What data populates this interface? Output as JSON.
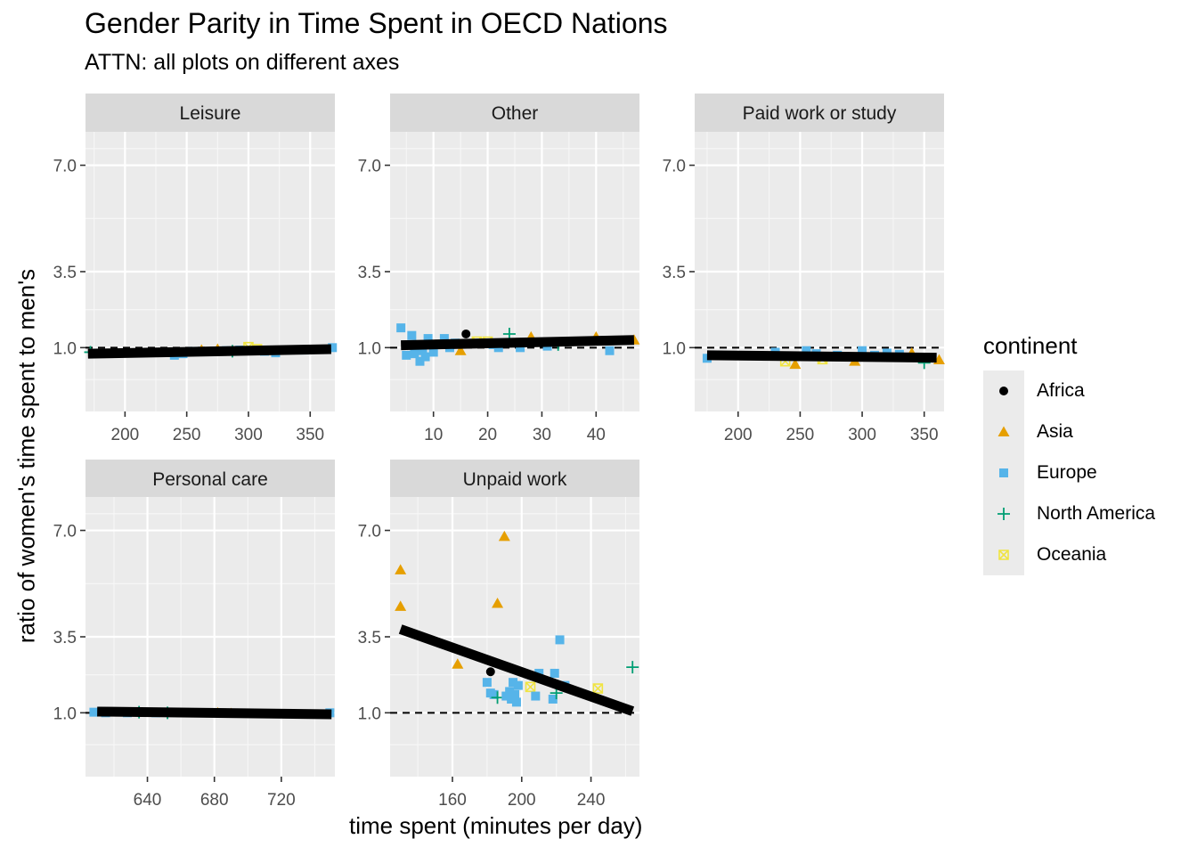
{
  "title": "Gender Parity in Time Spent in OECD Nations",
  "subtitle": "ATTN: all plots on different axes",
  "xlabel": "time spent (minutes per day)",
  "ylabel": "ratio of women's time spent to men's",
  "legend": {
    "title": "continent",
    "entries": [
      {
        "label": "Africa",
        "color": "#000000",
        "shape": "circle"
      },
      {
        "label": "Asia",
        "color": "#E69F00",
        "shape": "triangle"
      },
      {
        "label": "Europe",
        "color": "#56B4E9",
        "shape": "square"
      },
      {
        "label": "North America",
        "color": "#009E73",
        "shape": "plus"
      },
      {
        "label": "Oceania",
        "color": "#F0E442",
        "shape": "squarecross"
      }
    ]
  },
  "chart_data": {
    "type": "scatter",
    "reference_line_y": 1.0,
    "ylim": [
      -1.1,
      8.1
    ],
    "y_ticks": [
      1.0,
      3.5,
      7.0
    ],
    "y_tick_labels": [
      "1.0",
      "3.5",
      "7.0"
    ],
    "panels": [
      {
        "name": "Leisure",
        "xlim": [
          168,
          370
        ],
        "x_ticks": [
          200,
          250,
          300,
          350
        ],
        "fit": [
          [
            170,
            0.8
          ],
          [
            367,
            0.95
          ]
        ],
        "points": [
          {
            "x": 172,
            "y": 0.85,
            "c": "North America"
          },
          {
            "x": 240,
            "y": 0.75,
            "c": "Europe"
          },
          {
            "x": 247,
            "y": 0.8,
            "c": "Europe"
          },
          {
            "x": 255,
            "y": 0.88,
            "c": "Europe"
          },
          {
            "x": 262,
            "y": 0.92,
            "c": "Asia"
          },
          {
            "x": 275,
            "y": 0.95,
            "c": "Asia"
          },
          {
            "x": 282,
            "y": 0.9,
            "c": "Europe"
          },
          {
            "x": 287,
            "y": 0.88,
            "c": "North America"
          },
          {
            "x": 293,
            "y": 0.92,
            "c": "Europe"
          },
          {
            "x": 300,
            "y": 1.02,
            "c": "Oceania"
          },
          {
            "x": 307,
            "y": 0.95,
            "c": "Oceania"
          },
          {
            "x": 313,
            "y": 0.88,
            "c": "Europe"
          },
          {
            "x": 322,
            "y": 0.83,
            "c": "Europe"
          },
          {
            "x": 330,
            "y": 0.92,
            "c": "Europe"
          },
          {
            "x": 345,
            "y": 0.92,
            "c": "Europe"
          },
          {
            "x": 368,
            "y": 1.0,
            "c": "Europe"
          }
        ]
      },
      {
        "name": "Other",
        "xlim": [
          2,
          48
        ],
        "x_ticks": [
          10,
          20,
          30,
          40
        ],
        "fit": [
          [
            4,
            1.08
          ],
          [
            47,
            1.25
          ]
        ],
        "points": [
          {
            "x": 4,
            "y": 1.65,
            "c": "Europe"
          },
          {
            "x": 5,
            "y": 0.75,
            "c": "Europe"
          },
          {
            "x": 6,
            "y": 1.4,
            "c": "Europe"
          },
          {
            "x": 6.5,
            "y": 0.8,
            "c": "Europe"
          },
          {
            "x": 7,
            "y": 1.1,
            "c": "Europe"
          },
          {
            "x": 7.5,
            "y": 0.55,
            "c": "Europe"
          },
          {
            "x": 8,
            "y": 0.9,
            "c": "Europe"
          },
          {
            "x": 8.5,
            "y": 0.7,
            "c": "Europe"
          },
          {
            "x": 9,
            "y": 1.3,
            "c": "Europe"
          },
          {
            "x": 10,
            "y": 0.85,
            "c": "Europe"
          },
          {
            "x": 11,
            "y": 1.1,
            "c": "Europe"
          },
          {
            "x": 12,
            "y": 1.3,
            "c": "Europe"
          },
          {
            "x": 13,
            "y": 1.0,
            "c": "Europe"
          },
          {
            "x": 14,
            "y": 1.15,
            "c": "Europe"
          },
          {
            "x": 15,
            "y": 0.9,
            "c": "Asia"
          },
          {
            "x": 16,
            "y": 1.45,
            "c": "Africa"
          },
          {
            "x": 18,
            "y": 1.2,
            "c": "Oceania"
          },
          {
            "x": 20,
            "y": 1.2,
            "c": "Oceania"
          },
          {
            "x": 21,
            "y": 1.1,
            "c": "Europe"
          },
          {
            "x": 22,
            "y": 1.0,
            "c": "Europe"
          },
          {
            "x": 24,
            "y": 1.45,
            "c": "North America"
          },
          {
            "x": 26,
            "y": 1.0,
            "c": "Europe"
          },
          {
            "x": 28,
            "y": 1.35,
            "c": "Asia"
          },
          {
            "x": 31,
            "y": 1.05,
            "c": "Europe"
          },
          {
            "x": 33,
            "y": 1.1,
            "c": "North America"
          },
          {
            "x": 40,
            "y": 1.35,
            "c": "Asia"
          },
          {
            "x": 42.5,
            "y": 0.9,
            "c": "Europe"
          },
          {
            "x": 47,
            "y": 1.25,
            "c": "Asia"
          }
        ]
      },
      {
        "name": "Paid work or study",
        "xlim": [
          165,
          366
        ],
        "x_ticks": [
          200,
          250,
          300,
          350
        ],
        "fit": [
          [
            175,
            0.75
          ],
          [
            360,
            0.67
          ]
        ],
        "points": [
          {
            "x": 175,
            "y": 0.65,
            "c": "Europe"
          },
          {
            "x": 230,
            "y": 0.85,
            "c": "Europe"
          },
          {
            "x": 238,
            "y": 0.55,
            "c": "Oceania"
          },
          {
            "x": 246,
            "y": 0.45,
            "c": "Asia"
          },
          {
            "x": 255,
            "y": 0.9,
            "c": "Europe"
          },
          {
            "x": 258,
            "y": 0.72,
            "c": "Europe"
          },
          {
            "x": 263,
            "y": 0.8,
            "c": "Europe"
          },
          {
            "x": 268,
            "y": 0.62,
            "c": "Oceania"
          },
          {
            "x": 280,
            "y": 0.75,
            "c": "Europe"
          },
          {
            "x": 294,
            "y": 0.55,
            "c": "Asia"
          },
          {
            "x": 300,
            "y": 0.9,
            "c": "Europe"
          },
          {
            "x": 310,
            "y": 0.75,
            "c": "Europe"
          },
          {
            "x": 320,
            "y": 0.82,
            "c": "Europe"
          },
          {
            "x": 330,
            "y": 0.78,
            "c": "Europe"
          },
          {
            "x": 340,
            "y": 0.82,
            "c": "Asia"
          },
          {
            "x": 350,
            "y": 0.5,
            "c": "North America"
          },
          {
            "x": 362,
            "y": 0.6,
            "c": "Asia"
          }
        ]
      },
      {
        "name": "Personal care",
        "xlim": [
          603,
          752
        ],
        "x_ticks": [
          640,
          680,
          720
        ],
        "fit": [
          [
            610,
            1.04
          ],
          [
            750,
            0.95
          ]
        ],
        "points": [
          {
            "x": 608,
            "y": 1.02,
            "c": "Europe"
          },
          {
            "x": 615,
            "y": 1.0,
            "c": "Europe"
          },
          {
            "x": 628,
            "y": 1.0,
            "c": "Europe"
          },
          {
            "x": 635,
            "y": 1.02,
            "c": "North America"
          },
          {
            "x": 645,
            "y": 1.0,
            "c": "Europe"
          },
          {
            "x": 652,
            "y": 1.0,
            "c": "North America"
          },
          {
            "x": 660,
            "y": 1.0,
            "c": "Europe"
          },
          {
            "x": 668,
            "y": 1.0,
            "c": "Europe"
          },
          {
            "x": 682,
            "y": 1.0,
            "c": "Asia"
          },
          {
            "x": 690,
            "y": 0.98,
            "c": "Asia"
          },
          {
            "x": 700,
            "y": 0.98,
            "c": "Europe"
          },
          {
            "x": 720,
            "y": 0.97,
            "c": "Europe"
          },
          {
            "x": 749,
            "y": 1.0,
            "c": "Europe"
          }
        ]
      },
      {
        "name": "Unpaid work",
        "xlim": [
          124,
          268
        ],
        "x_ticks": [
          160,
          200,
          240
        ],
        "fit": [
          [
            130,
            3.75
          ],
          [
            264,
            1.05
          ]
        ],
        "points": [
          {
            "x": 130,
            "y": 5.7,
            "c": "Asia"
          },
          {
            "x": 130,
            "y": 4.5,
            "c": "Asia"
          },
          {
            "x": 163,
            "y": 2.6,
            "c": "Asia"
          },
          {
            "x": 180,
            "y": 2.0,
            "c": "Europe"
          },
          {
            "x": 182,
            "y": 2.35,
            "c": "Africa"
          },
          {
            "x": 182,
            "y": 1.65,
            "c": "Europe"
          },
          {
            "x": 184,
            "y": 1.6,
            "c": "Europe"
          },
          {
            "x": 186,
            "y": 4.6,
            "c": "Asia"
          },
          {
            "x": 186,
            "y": 1.5,
            "c": "North America"
          },
          {
            "x": 190,
            "y": 6.8,
            "c": "Asia"
          },
          {
            "x": 191,
            "y": 1.55,
            "c": "Europe"
          },
          {
            "x": 193,
            "y": 1.7,
            "c": "Europe"
          },
          {
            "x": 194,
            "y": 1.45,
            "c": "Europe"
          },
          {
            "x": 195,
            "y": 2.0,
            "c": "Europe"
          },
          {
            "x": 196,
            "y": 1.6,
            "c": "Europe"
          },
          {
            "x": 197,
            "y": 1.35,
            "c": "Europe"
          },
          {
            "x": 198,
            "y": 1.9,
            "c": "Europe"
          },
          {
            "x": 205,
            "y": 1.85,
            "c": "Oceania"
          },
          {
            "x": 208,
            "y": 1.55,
            "c": "Europe"
          },
          {
            "x": 210,
            "y": 2.3,
            "c": "Europe"
          },
          {
            "x": 218,
            "y": 1.45,
            "c": "Europe"
          },
          {
            "x": 219,
            "y": 2.3,
            "c": "Europe"
          },
          {
            "x": 220,
            "y": 1.65,
            "c": "North America"
          },
          {
            "x": 222,
            "y": 3.4,
            "c": "Europe"
          },
          {
            "x": 225,
            "y": 1.9,
            "c": "Europe"
          },
          {
            "x": 244,
            "y": 1.8,
            "c": "Oceania"
          },
          {
            "x": 264,
            "y": 2.5,
            "c": "North America"
          }
        ]
      }
    ]
  }
}
